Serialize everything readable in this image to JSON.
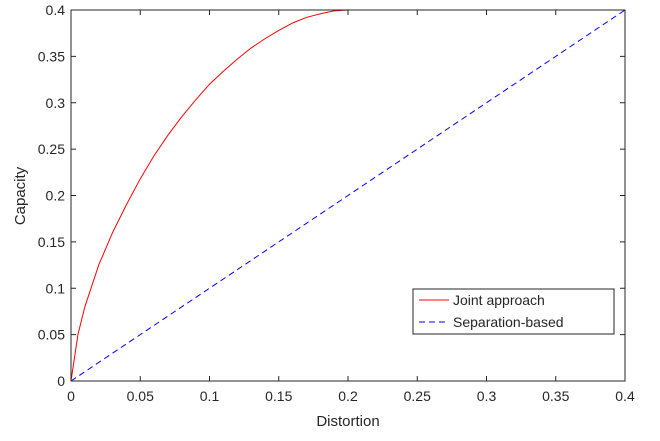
{
  "chart_data": {
    "type": "line",
    "title": "",
    "xlabel": "Distortion",
    "ylabel": "Capacity",
    "xlim": [
      0,
      0.4
    ],
    "ylim": [
      0,
      0.4
    ],
    "xticks": [
      0,
      0.05,
      0.1,
      0.15,
      0.2,
      0.25,
      0.3,
      0.35,
      0.4
    ],
    "yticks": [
      0,
      0.05,
      0.1,
      0.15,
      0.2,
      0.25,
      0.3,
      0.35,
      0.4
    ],
    "xtick_labels": [
      "0",
      "0.05",
      "0.1",
      "0.15",
      "0.2",
      "0.25",
      "0.3",
      "0.35",
      "0.4"
    ],
    "ytick_labels": [
      "0",
      "0.05",
      "0.1",
      "0.15",
      "0.2",
      "0.25",
      "0.3",
      "0.35",
      "0.4"
    ],
    "grid": false,
    "legend_position": "bottom-right",
    "series": [
      {
        "name": "Joint approach",
        "color": "#ff0000",
        "dash": "solid",
        "x": [
          0,
          0.005,
          0.01,
          0.02,
          0.03,
          0.04,
          0.05,
          0.06,
          0.07,
          0.08,
          0.09,
          0.1,
          0.11,
          0.12,
          0.13,
          0.14,
          0.15,
          0.16,
          0.17,
          0.18,
          0.19,
          0.2,
          0.25,
          0.3,
          0.35,
          0.4
        ],
        "y": [
          0,
          0.05,
          0.08,
          0.125,
          0.16,
          0.19,
          0.218,
          0.243,
          0.265,
          0.285,
          0.303,
          0.32,
          0.334,
          0.347,
          0.359,
          0.369,
          0.378,
          0.386,
          0.392,
          0.396,
          0.399,
          0.4,
          0.4,
          0.4,
          0.4,
          0.4
        ]
      },
      {
        "name": "Separation-based",
        "color": "#0000ff",
        "dash": "dashed",
        "x": [
          0,
          0.4
        ],
        "y": [
          0,
          0.4
        ]
      }
    ]
  }
}
